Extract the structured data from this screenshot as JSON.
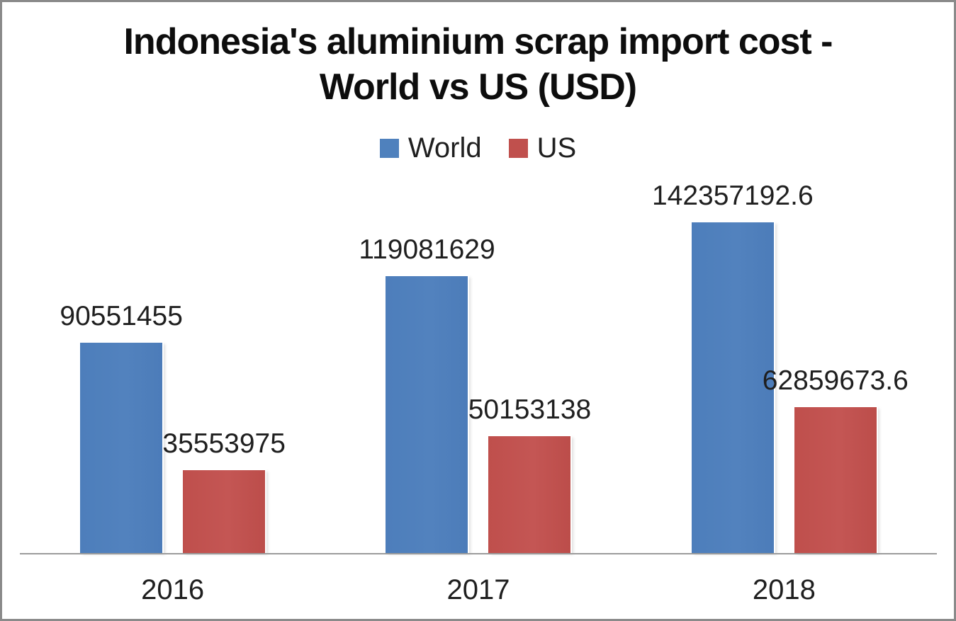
{
  "chart_data": {
    "type": "bar",
    "title": "Indonesia's aluminium scrap import cost - World vs US (USD)",
    "title_lines": [
      "Indonesia's aluminium scrap import cost -",
      "World vs US (USD)"
    ],
    "categories": [
      "2016",
      "2017",
      "2018"
    ],
    "series": [
      {
        "name": "World",
        "color": "#4F81BD",
        "values": [
          90551455,
          119081629,
          142357192.6
        ],
        "labels": [
          "90551455",
          "119081629",
          "142357192.6"
        ]
      },
      {
        "name": "US",
        "color": "#C0504D",
        "values": [
          35553975,
          50153138,
          62859673.6
        ],
        "labels": [
          "35553975",
          "50153138",
          "62859673.6"
        ]
      }
    ],
    "legend_position": "top",
    "legend_entries": [
      "World",
      "US"
    ],
    "data_labels": true,
    "grid": false,
    "axis_max": 142357192.6,
    "ylabel": "",
    "xlabel": ""
  },
  "colors": {
    "world_bar": "#4F81BD",
    "us_bar": "#C0504D",
    "axis_line": "#9B9B9B",
    "frame_border": "#8A8A8A",
    "label_text": "#1F1F1F",
    "title_text": "#0D0D0D",
    "background": "#FFFFFF"
  }
}
